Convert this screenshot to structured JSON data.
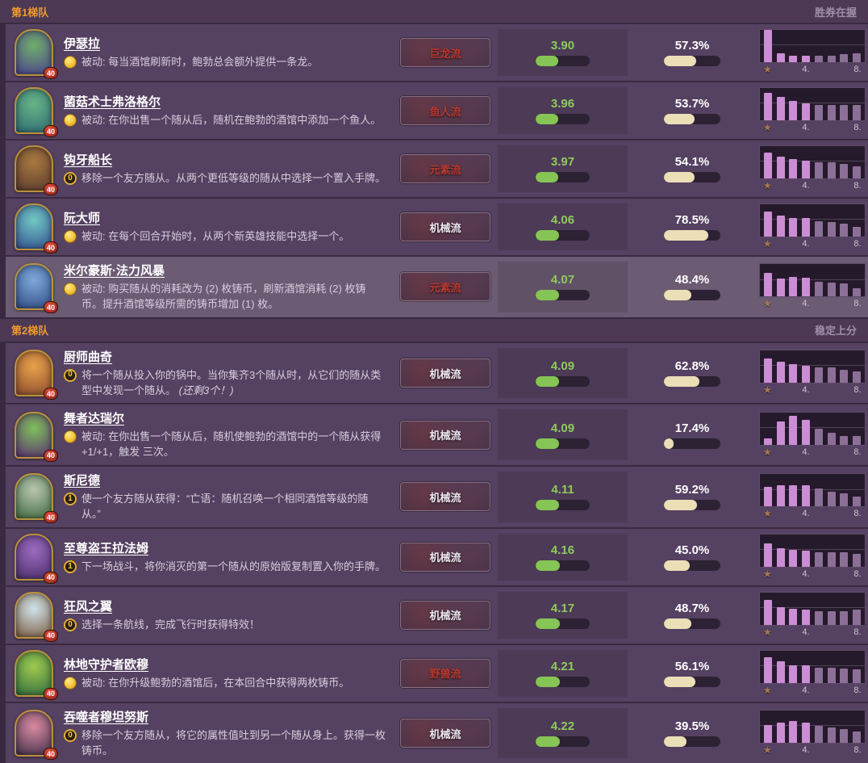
{
  "portrait_badge": "40",
  "histogram": {
    "first_place_icon": "★",
    "axis_labels": [
      "",
      "",
      "",
      "4.",
      "",
      "",
      "",
      "8."
    ]
  },
  "tiers": [
    {
      "label": "第1梯队",
      "status": "胜券在握",
      "rows": [
        {
          "name": "伊瑟拉",
          "cost": "",
          "desc": "被动: 每当酒馆刷新时，鲍勃总会额外提供一条龙。",
          "note": "",
          "tribe": "巨龙流",
          "tribe_color": "red",
          "rating": "3.90",
          "winrate": "57.3%",
          "placements": [
            100,
            27,
            21,
            19,
            21,
            21,
            24,
            27
          ],
          "highlight": false,
          "portrait": {
            "a": "#6fae6a",
            "b": "#4b3f8f"
          }
        },
        {
          "name": "菌菇术士弗洛格尔",
          "cost": "",
          "desc": "被动: 在你出售一个随从后，随机在鲍勃的酒馆中添加一个鱼人。",
          "note": "",
          "tribe": "鱼人流",
          "tribe_color": "red",
          "rating": "3.96",
          "winrate": "53.7%",
          "placements": [
            86,
            73,
            60,
            52,
            47,
            47,
            47,
            47
          ],
          "highlight": false,
          "portrait": {
            "a": "#67b487",
            "b": "#2e6a73"
          }
        },
        {
          "name": "钩牙船长",
          "cost": "0",
          "desc": "移除一个友方随从。从两个更低等级的随从中选择一个置入手牌。",
          "note": "",
          "tribe": "元素流",
          "tribe_color": "red",
          "rating": "3.97",
          "winrate": "54.1%",
          "placements": [
            80,
            67,
            60,
            54,
            49,
            49,
            44,
            38
          ],
          "highlight": false,
          "portrait": {
            "a": "#a8793f",
            "b": "#5a3b2e"
          }
        },
        {
          "name": "阮大师",
          "cost": "",
          "desc": "被动: 在每个回合开始时，从两个新英雄技能中选择一个。",
          "note": "",
          "tribe": "机械流",
          "tribe_color": "white",
          "rating": "4.06",
          "winrate": "78.5%",
          "placements": [
            78,
            64,
            57,
            57,
            47,
            44,
            40,
            30
          ],
          "highlight": false,
          "portrait": {
            "a": "#72c7c4",
            "b": "#31508f"
          }
        },
        {
          "name": "米尔豪斯·法力风暴",
          "cost": "",
          "desc": "被动: 购买随从的消耗改为 (2) 枚铸币，刷新酒馆消耗 (2) 枚铸币。提升酒馆等级所需的铸币增加 (1) 枚。",
          "note": "",
          "tribe": "元素流",
          "tribe_color": "red",
          "rating": "4.07",
          "winrate": "48.4%",
          "placements": [
            73,
            55,
            62,
            59,
            47,
            44,
            41,
            25
          ],
          "highlight": true,
          "portrait": {
            "a": "#7ea9d9",
            "b": "#2e4a86"
          }
        }
      ]
    },
    {
      "label": "第2梯队",
      "status": "稳定上分",
      "rows": [
        {
          "name": "厨师曲奇",
          "cost": "0",
          "desc": "将一个随从投入你的锅中。当你集齐3个随从时，从它们的随从类型中发现一个随从。",
          "note": "(还剩3个！)",
          "tribe": "机械流",
          "tribe_color": "white",
          "rating": "4.09",
          "winrate": "62.8%",
          "placements": [
            76,
            66,
            58,
            53,
            47,
            47,
            40,
            34
          ],
          "highlight": false,
          "portrait": {
            "a": "#e8a24a",
            "b": "#8a4a2e"
          }
        },
        {
          "name": "舞者达瑞尔",
          "cost": "",
          "desc": "被动: 在你出售一个随从后，随机使鲍勃的酒馆中的一个随从获得+1/+1，触发 三次。",
          "note": "",
          "tribe": "机械流",
          "tribe_color": "white",
          "rating": "4.09",
          "winrate": "17.4%",
          "placements": [
            20,
            72,
            90,
            78,
            50,
            38,
            27,
            27
          ],
          "highlight": false,
          "portrait": {
            "a": "#7fbf5a",
            "b": "#5a2e72"
          }
        },
        {
          "name": "斯尼德",
          "cost": "1",
          "desc": "使一个友方随从获得：“亡语：随机召唤一个相同酒馆等级的随从。”",
          "note": "",
          "tribe": "机械流",
          "tribe_color": "white",
          "rating": "4.11",
          "winrate": "59.2%",
          "placements": [
            62,
            66,
            66,
            66,
            55,
            46,
            41,
            30
          ],
          "highlight": false,
          "portrait": {
            "a": "#b8c4b0",
            "b": "#3f6a3f"
          }
        },
        {
          "name": "至尊盗王拉法姆",
          "cost": "1",
          "desc": "下一场战斗，将你消灭的第一个随从的原始版复制置入你的手牌。",
          "note": "",
          "tribe": "机械流",
          "tribe_color": "white",
          "rating": "4.16",
          "winrate": "45.0%",
          "placements": [
            73,
            58,
            52,
            50,
            45,
            45,
            45,
            40
          ],
          "highlight": false,
          "portrait": {
            "a": "#9a6ac0",
            "b": "#4a2e6a"
          }
        },
        {
          "name": "狂风之翼",
          "cost": "0",
          "desc": "选择一条航线，完成飞行时获得特效！",
          "note": "",
          "tribe": "机械流",
          "tribe_color": "white",
          "rating": "4.17",
          "winrate": "48.7%",
          "placements": [
            76,
            55,
            50,
            48,
            42,
            42,
            42,
            46
          ],
          "highlight": false,
          "portrait": {
            "a": "#cfe3ea",
            "b": "#7a5a3f"
          }
        },
        {
          "name": "林地守护者欧穆",
          "cost": "",
          "desc": "被动: 在你升级鲍勃的酒馆后，在本回合中获得两枚铸币。",
          "note": "",
          "tribe": "野兽流",
          "tribe_color": "red",
          "rating": "4.21",
          "winrate": "56.1%",
          "placements": [
            80,
            67,
            55,
            55,
            47,
            47,
            44,
            41
          ],
          "highlight": false,
          "portrait": {
            "a": "#9fca4f",
            "b": "#2e6a3f"
          }
        },
        {
          "name": "吞噬者穆坦努斯",
          "cost": "0",
          "desc": "移除一个友方随从，将它的属性值吐到另一个随从身上。获得一枚铸币。",
          "note": "",
          "tribe": "机械流",
          "tribe_color": "white",
          "rating": "4.22",
          "winrate": "39.5%",
          "placements": [
            55,
            63,
            69,
            63,
            52,
            48,
            42,
            35
          ],
          "highlight": false,
          "portrait": {
            "a": "#d98aa0",
            "b": "#3f2e4a"
          }
        }
      ]
    }
  ]
}
